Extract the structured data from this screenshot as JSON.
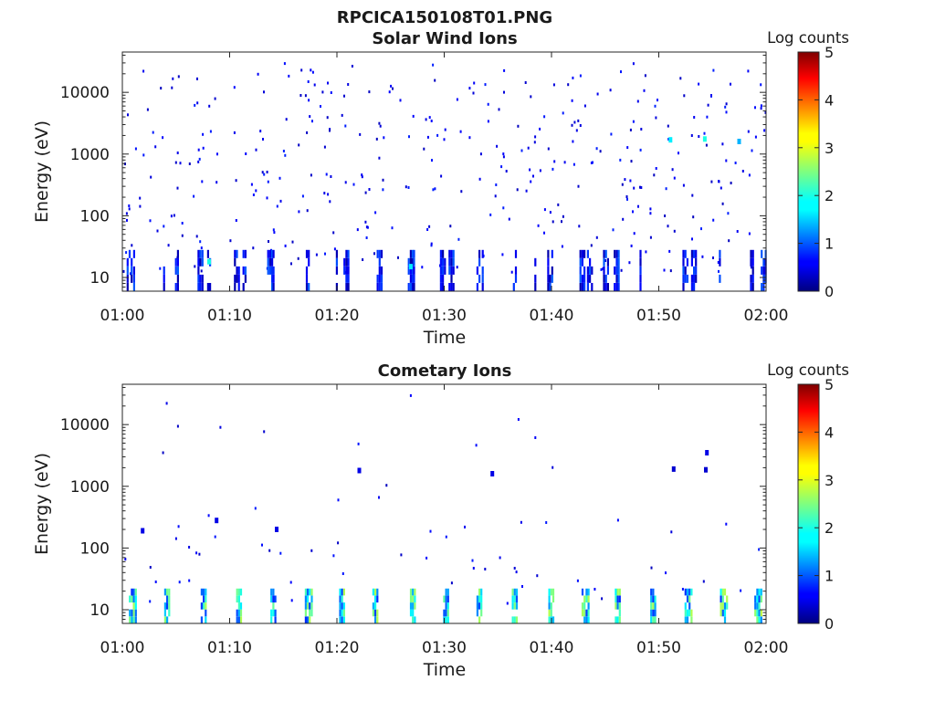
{
  "figure": {
    "title": "RPCICA150108T01.PNG"
  },
  "chart_data": [
    {
      "type": "heatmap",
      "title": "Solar Wind Ions",
      "xlabel": "Time",
      "ylabel": "Energy (eV)",
      "y_scale": "log",
      "x_range": [
        "01:00",
        "02:00"
      ],
      "y_range": [
        6,
        45000
      ],
      "x_ticks": [
        "01:00",
        "01:10",
        "01:20",
        "01:30",
        "01:40",
        "01:50",
        "02:00"
      ],
      "y_ticks": [
        10,
        100,
        1000,
        10000
      ],
      "y_tick_labels": [
        "10",
        "100",
        "1000",
        "10000"
      ],
      "colorbar": {
        "label": "Log counts",
        "min": 0,
        "max": 5,
        "ticks": [
          "0",
          "1",
          "2",
          "3",
          "4",
          "5"
        ],
        "colormap": "jet"
      },
      "low_energy_band_minutes": [
        0.4,
        1.0,
        3.8,
        4.9,
        7.0,
        7.9,
        10.4,
        11.2,
        13.5,
        14.0,
        17.1,
        19.9,
        20.6,
        23.7,
        26.6,
        27.1,
        29.6,
        30.4,
        33.0,
        33.5,
        36.4,
        38.4,
        39.6,
        42.6,
        43.3,
        44.8,
        45.8,
        48.2,
        52.2,
        53.0,
        55.6,
        58.5,
        59.5
      ],
      "low_energy_band_energy_eV": [
        6,
        28
      ],
      "highlights": [
        {
          "minute": 51.0,
          "energy_eV": 1700,
          "log_counts": 1.8
        },
        {
          "minute": 54.2,
          "energy_eV": 1750,
          "log_counts": 2.0
        },
        {
          "minute": 57.4,
          "energy_eV": 1600,
          "log_counts": 1.5
        },
        {
          "minute": 8.0,
          "energy_eV": 18,
          "log_counts": 2.0
        },
        {
          "minute": 26.8,
          "energy_eV": 15,
          "log_counts": 1.8
        }
      ]
    },
    {
      "type": "heatmap",
      "title": "Cometary Ions",
      "xlabel": "Time",
      "ylabel": "Energy (eV)",
      "y_scale": "log",
      "x_range": [
        "01:00",
        "02:00"
      ],
      "y_range": [
        6,
        45000
      ],
      "x_ticks": [
        "01:00",
        "01:10",
        "01:20",
        "01:30",
        "01:40",
        "01:50",
        "02:00"
      ],
      "y_ticks": [
        10,
        100,
        1000,
        10000
      ],
      "y_tick_labels": [
        "10",
        "100",
        "1000",
        "10000"
      ],
      "colorbar": {
        "label": "Log counts",
        "min": 0,
        "max": 5,
        "ticks": [
          "0",
          "1",
          "2",
          "3",
          "4",
          "5"
        ],
        "colormap": "jet"
      },
      "low_energy_band_minutes": [
        0.6,
        3.9,
        7.3,
        10.6,
        13.8,
        17.0,
        20.2,
        23.3,
        26.8,
        29.9,
        33.0,
        36.3,
        39.7,
        42.8,
        45.9,
        49.2,
        52.4,
        55.7,
        58.9
      ],
      "low_energy_band_energy_eV": [
        6,
        22
      ],
      "band_log_counts_peak": 2.8,
      "isolated_points": [
        {
          "minute": 22.0,
          "energy_eV": 1800,
          "log_counts": 0.5
        },
        {
          "minute": 34.4,
          "energy_eV": 1600,
          "log_counts": 0.5
        },
        {
          "minute": 51.3,
          "energy_eV": 1900,
          "log_counts": 0.4
        },
        {
          "minute": 54.3,
          "energy_eV": 1850,
          "log_counts": 0.4
        },
        {
          "minute": 54.4,
          "energy_eV": 3500,
          "log_counts": 0.5
        },
        {
          "minute": 1.8,
          "energy_eV": 190,
          "log_counts": 0.5
        },
        {
          "minute": 8.7,
          "energy_eV": 280,
          "log_counts": 0.5
        },
        {
          "minute": 14.3,
          "energy_eV": 200,
          "log_counts": 0.5
        }
      ]
    }
  ]
}
